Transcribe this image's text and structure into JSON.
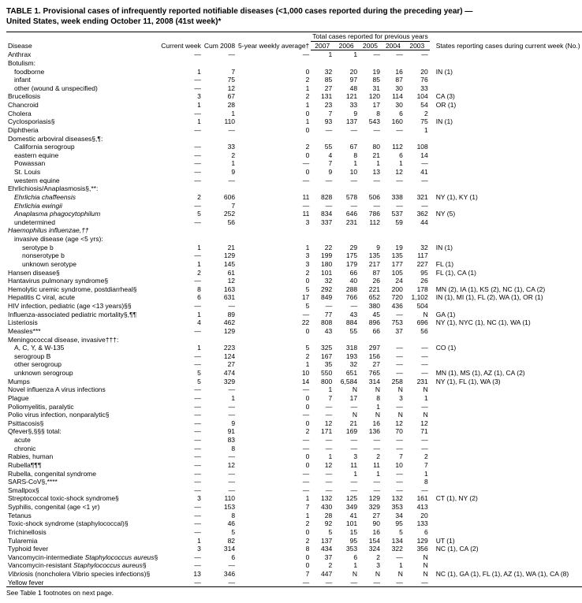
{
  "title": "TABLE 1. Provisional cases of infrequently reported notifiable diseases (<1,000 cases reported during the preceding year) — United States, week ending October 11, 2008 (41st week)*",
  "footnote": "See Table 1 footnotes on next page.",
  "columns": {
    "disease": "Disease",
    "current_week": "Current week",
    "cum_2008": "Cum 2008",
    "five_yr_avg": "5-year weekly average†",
    "span_total": "Total cases reported for previous years",
    "y2007": "2007",
    "y2006": "2006",
    "y2005": "2005",
    "y2004": "2004",
    "y2003": "2003",
    "states": "States reporting cases during current week (No.)"
  },
  "rows": [
    {
      "d": "Anthrax",
      "cw": "—",
      "cum": "—",
      "avg": "—",
      "y7": "1",
      "y6": "1",
      "y5": "—",
      "y4": "—",
      "y3": "—",
      "st": ""
    },
    {
      "d": "Botulism:",
      "cw": "",
      "cum": "",
      "avg": "",
      "y7": "",
      "y6": "",
      "y5": "",
      "y4": "",
      "y3": "",
      "st": ""
    },
    {
      "d": "foodborne",
      "ind": 1,
      "cw": "1",
      "cum": "7",
      "avg": "0",
      "y7": "32",
      "y6": "20",
      "y5": "19",
      "y4": "16",
      "y3": "20",
      "st": "IN (1)"
    },
    {
      "d": "infant",
      "ind": 1,
      "cw": "—",
      "cum": "75",
      "avg": "2",
      "y7": "85",
      "y6": "97",
      "y5": "85",
      "y4": "87",
      "y3": "76",
      "st": ""
    },
    {
      "d": "other (wound & unspecified)",
      "ind": 1,
      "cw": "—",
      "cum": "12",
      "avg": "1",
      "y7": "27",
      "y6": "48",
      "y5": "31",
      "y4": "30",
      "y3": "33",
      "st": ""
    },
    {
      "d": "Brucellosis",
      "cw": "3",
      "cum": "67",
      "avg": "2",
      "y7": "131",
      "y6": "121",
      "y5": "120",
      "y4": "114",
      "y3": "104",
      "st": "CA (3)"
    },
    {
      "d": "Chancroid",
      "cw": "1",
      "cum": "28",
      "avg": "1",
      "y7": "23",
      "y6": "33",
      "y5": "17",
      "y4": "30",
      "y3": "54",
      "st": "OR (1)"
    },
    {
      "d": "Cholera",
      "cw": "—",
      "cum": "1",
      "avg": "0",
      "y7": "7",
      "y6": "9",
      "y5": "8",
      "y4": "6",
      "y3": "2",
      "st": ""
    },
    {
      "d": "Cyclosporiasis§",
      "cw": "1",
      "cum": "110",
      "avg": "1",
      "y7": "93",
      "y6": "137",
      "y5": "543",
      "y4": "160",
      "y3": "75",
      "st": "IN (1)"
    },
    {
      "d": "Diphtheria",
      "cw": "—",
      "cum": "—",
      "avg": "0",
      "y7": "—",
      "y6": "—",
      "y5": "—",
      "y4": "—",
      "y3": "1",
      "st": ""
    },
    {
      "d": "Domestic arboviral diseases§,¶:",
      "cw": "",
      "cum": "",
      "avg": "",
      "y7": "",
      "y6": "",
      "y5": "",
      "y4": "",
      "y3": "",
      "st": ""
    },
    {
      "d": "California serogroup",
      "ind": 1,
      "cw": "—",
      "cum": "33",
      "avg": "2",
      "y7": "55",
      "y6": "67",
      "y5": "80",
      "y4": "112",
      "y3": "108",
      "st": ""
    },
    {
      "d": "eastern equine",
      "ind": 1,
      "cw": "—",
      "cum": "2",
      "avg": "0",
      "y7": "4",
      "y6": "8",
      "y5": "21",
      "y4": "6",
      "y3": "14",
      "st": ""
    },
    {
      "d": "Powassan",
      "ind": 1,
      "cw": "—",
      "cum": "1",
      "avg": "—",
      "y7": "7",
      "y6": "1",
      "y5": "1",
      "y4": "1",
      "y3": "—",
      "st": ""
    },
    {
      "d": "St. Louis",
      "ind": 1,
      "cw": "—",
      "cum": "9",
      "avg": "0",
      "y7": "9",
      "y6": "10",
      "y5": "13",
      "y4": "12",
      "y3": "41",
      "st": ""
    },
    {
      "d": "western equine",
      "ind": 1,
      "cw": "—",
      "cum": "—",
      "avg": "—",
      "y7": "—",
      "y6": "—",
      "y5": "—",
      "y4": "—",
      "y3": "—",
      "st": ""
    },
    {
      "d": "Ehrlichiosis/Anaplasmosis§,**:",
      "cw": "",
      "cum": "",
      "avg": "",
      "y7": "",
      "y6": "",
      "y5": "",
      "y4": "",
      "y3": "",
      "st": ""
    },
    {
      "d": "Ehrlichia chaffeensis",
      "ind": 1,
      "it": true,
      "cw": "2",
      "cum": "606",
      "avg": "11",
      "y7": "828",
      "y6": "578",
      "y5": "506",
      "y4": "338",
      "y3": "321",
      "st": "NY (1), KY (1)"
    },
    {
      "d": "Ehrlichia ewingii",
      "ind": 1,
      "it": true,
      "cw": "—",
      "cum": "7",
      "avg": "—",
      "y7": "—",
      "y6": "—",
      "y5": "—",
      "y4": "—",
      "y3": "—",
      "st": ""
    },
    {
      "d": "Anaplasma phagocytophilum",
      "ind": 1,
      "it": true,
      "cw": "5",
      "cum": "252",
      "avg": "11",
      "y7": "834",
      "y6": "646",
      "y5": "786",
      "y4": "537",
      "y3": "362",
      "st": "NY (5)"
    },
    {
      "d": "undetermined",
      "ind": 1,
      "cw": "—",
      "cum": "56",
      "avg": "3",
      "y7": "337",
      "y6": "231",
      "y5": "112",
      "y4": "59",
      "y3": "44",
      "st": ""
    },
    {
      "d": "Haemophilus influenzae,††",
      "it": true,
      "cw": "",
      "cum": "",
      "avg": "",
      "y7": "",
      "y6": "",
      "y5": "",
      "y4": "",
      "y3": "",
      "st": ""
    },
    {
      "d": "invasive disease (age <5 yrs):",
      "ind": 1,
      "cw": "",
      "cum": "",
      "avg": "",
      "y7": "",
      "y6": "",
      "y5": "",
      "y4": "",
      "y3": "",
      "st": ""
    },
    {
      "d": "serotype b",
      "ind": 2,
      "cw": "1",
      "cum": "21",
      "avg": "1",
      "y7": "22",
      "y6": "29",
      "y5": "9",
      "y4": "19",
      "y3": "32",
      "st": "IN (1)"
    },
    {
      "d": "nonserotype b",
      "ind": 2,
      "cw": "—",
      "cum": "129",
      "avg": "3",
      "y7": "199",
      "y6": "175",
      "y5": "135",
      "y4": "135",
      "y3": "117",
      "st": ""
    },
    {
      "d": "unknown serotype",
      "ind": 2,
      "cw": "1",
      "cum": "145",
      "avg": "3",
      "y7": "180",
      "y6": "179",
      "y5": "217",
      "y4": "177",
      "y3": "227",
      "st": "FL (1)"
    },
    {
      "d": "Hansen disease§",
      "cw": "2",
      "cum": "61",
      "avg": "2",
      "y7": "101",
      "y6": "66",
      "y5": "87",
      "y4": "105",
      "y3": "95",
      "st": "FL (1), CA (1)"
    },
    {
      "d": "Hantavirus pulmonary syndrome§",
      "cw": "—",
      "cum": "12",
      "avg": "0",
      "y7": "32",
      "y6": "40",
      "y5": "26",
      "y4": "24",
      "y3": "26",
      "st": ""
    },
    {
      "d": "Hemolytic uremic syndrome, postdiarrheal§",
      "cw": "8",
      "cum": "163",
      "avg": "5",
      "y7": "292",
      "y6": "288",
      "y5": "221",
      "y4": "200",
      "y3": "178",
      "st": "MN (2), IA (1), KS (2), NC (1), CA (2)"
    },
    {
      "d": "Hepatitis C viral, acute",
      "cw": "6",
      "cum": "631",
      "avg": "17",
      "y7": "849",
      "y6": "766",
      "y5": "652",
      "y4": "720",
      "y3": "1,102",
      "st": "IN (1), MI (1), FL (2), WA (1), OR (1)"
    },
    {
      "d": "HIV infection, pediatric (age <13 years)§§",
      "cw": "—",
      "cum": "—",
      "avg": "5",
      "y7": "—",
      "y6": "—",
      "y5": "380",
      "y4": "436",
      "y3": "504",
      "st": ""
    },
    {
      "d": "Influenza-associated pediatric mortality§,¶¶",
      "cw": "1",
      "cum": "89",
      "avg": "—",
      "y7": "77",
      "y6": "43",
      "y5": "45",
      "y4": "—",
      "y3": "N",
      "st": "GA (1)"
    },
    {
      "d": "Listeriosis",
      "cw": "4",
      "cum": "462",
      "avg": "22",
      "y7": "808",
      "y6": "884",
      "y5": "896",
      "y4": "753",
      "y3": "696",
      "st": "NY (1), NYC (1), NC (1), WA (1)"
    },
    {
      "d": "Measles***",
      "cw": "—",
      "cum": "129",
      "avg": "0",
      "y7": "43",
      "y6": "55",
      "y5": "66",
      "y4": "37",
      "y3": "56",
      "st": ""
    },
    {
      "d": "Meningococcal disease, invasive†††:",
      "cw": "",
      "cum": "",
      "avg": "",
      "y7": "",
      "y6": "",
      "y5": "",
      "y4": "",
      "y3": "",
      "st": ""
    },
    {
      "d": "A, C, Y, & W-135",
      "ind": 1,
      "cw": "1",
      "cum": "223",
      "avg": "5",
      "y7": "325",
      "y6": "318",
      "y5": "297",
      "y4": "—",
      "y3": "—",
      "st": "CO (1)"
    },
    {
      "d": "serogroup B",
      "ind": 1,
      "cw": "—",
      "cum": "124",
      "avg": "2",
      "y7": "167",
      "y6": "193",
      "y5": "156",
      "y4": "—",
      "y3": "—",
      "st": ""
    },
    {
      "d": "other serogroup",
      "ind": 1,
      "cw": "—",
      "cum": "27",
      "avg": "1",
      "y7": "35",
      "y6": "32",
      "y5": "27",
      "y4": "—",
      "y3": "—",
      "st": ""
    },
    {
      "d": "unknown serogroup",
      "ind": 1,
      "cw": "5",
      "cum": "474",
      "avg": "10",
      "y7": "550",
      "y6": "651",
      "y5": "765",
      "y4": "—",
      "y3": "—",
      "st": "MN (1), MS (1), AZ (1), CA (2)"
    },
    {
      "d": "Mumps",
      "cw": "5",
      "cum": "329",
      "avg": "14",
      "y7": "800",
      "y6": "6,584",
      "y5": "314",
      "y4": "258",
      "y3": "231",
      "st": "NY (1), FL (1), WA (3)"
    },
    {
      "d": "Novel influenza A virus infections",
      "cw": "—",
      "cum": "—",
      "avg": "—",
      "y7": "1",
      "y6": "N",
      "y5": "N",
      "y4": "N",
      "y3": "N",
      "st": ""
    },
    {
      "d": "Plague",
      "cw": "—",
      "cum": "1",
      "avg": "0",
      "y7": "7",
      "y6": "17",
      "y5": "8",
      "y4": "3",
      "y3": "1",
      "st": ""
    },
    {
      "d": "Poliomyelitis, paralytic",
      "cw": "—",
      "cum": "—",
      "avg": "0",
      "y7": "—",
      "y6": "—",
      "y5": "1",
      "y4": "—",
      "y3": "—",
      "st": ""
    },
    {
      "d": "Polio virus infection, nonparalytic§",
      "cw": "—",
      "cum": "—",
      "avg": "—",
      "y7": "—",
      "y6": "N",
      "y5": "N",
      "y4": "N",
      "y3": "N",
      "st": ""
    },
    {
      "d": "Psittacosis§",
      "cw": "—",
      "cum": "9",
      "avg": "0",
      "y7": "12",
      "y6": "21",
      "y5": "16",
      "y4": "12",
      "y3": "12",
      "st": ""
    },
    {
      "d": "Qfever§,§§§ total:",
      "cw": "—",
      "cum": "91",
      "avg": "2",
      "y7": "171",
      "y6": "169",
      "y5": "136",
      "y4": "70",
      "y3": "71",
      "st": ""
    },
    {
      "d": "acute",
      "ind": 1,
      "cw": "—",
      "cum": "83",
      "avg": "—",
      "y7": "—",
      "y6": "—",
      "y5": "—",
      "y4": "—",
      "y3": "—",
      "st": ""
    },
    {
      "d": "chronic",
      "ind": 1,
      "cw": "—",
      "cum": "8",
      "avg": "—",
      "y7": "—",
      "y6": "—",
      "y5": "—",
      "y4": "—",
      "y3": "—",
      "st": ""
    },
    {
      "d": "Rabies, human",
      "cw": "—",
      "cum": "—",
      "avg": "0",
      "y7": "1",
      "y6": "3",
      "y5": "2",
      "y4": "7",
      "y3": "2",
      "st": ""
    },
    {
      "d": "Rubella¶¶¶",
      "cw": "—",
      "cum": "12",
      "avg": "0",
      "y7": "12",
      "y6": "11",
      "y5": "11",
      "y4": "10",
      "y3": "7",
      "st": ""
    },
    {
      "d": "Rubella, congenital syndrome",
      "cw": "—",
      "cum": "—",
      "avg": "—",
      "y7": "—",
      "y6": "1",
      "y5": "1",
      "y4": "—",
      "y3": "1",
      "st": ""
    },
    {
      "d": "SARS-CoV§,****",
      "cw": "—",
      "cum": "—",
      "avg": "—",
      "y7": "—",
      "y6": "—",
      "y5": "—",
      "y4": "—",
      "y3": "8",
      "st": ""
    },
    {
      "d": "Smallpox§",
      "cw": "—",
      "cum": "—",
      "avg": "—",
      "y7": "—",
      "y6": "—",
      "y5": "—",
      "y4": "—",
      "y3": "—",
      "st": ""
    },
    {
      "d": "Streptococcal toxic-shock syndrome§",
      "cw": "3",
      "cum": "110",
      "avg": "1",
      "y7": "132",
      "y6": "125",
      "y5": "129",
      "y4": "132",
      "y3": "161",
      "st": "CT (1), NY (2)"
    },
    {
      "d": "Syphilis, congenital (age <1 yr)",
      "cw": "—",
      "cum": "153",
      "avg": "7",
      "y7": "430",
      "y6": "349",
      "y5": "329",
      "y4": "353",
      "y3": "413",
      "st": ""
    },
    {
      "d": "Tetanus",
      "cw": "—",
      "cum": "8",
      "avg": "1",
      "y7": "28",
      "y6": "41",
      "y5": "27",
      "y4": "34",
      "y3": "20",
      "st": ""
    },
    {
      "d": "Toxic-shock syndrome (staphylococcal)§",
      "cw": "—",
      "cum": "46",
      "avg": "2",
      "y7": "92",
      "y6": "101",
      "y5": "90",
      "y4": "95",
      "y3": "133",
      "st": ""
    },
    {
      "d": "Trichinellosis",
      "cw": "—",
      "cum": "5",
      "avg": "0",
      "y7": "5",
      "y6": "15",
      "y5": "16",
      "y4": "5",
      "y3": "6",
      "st": ""
    },
    {
      "d": "Tularemia",
      "cw": "1",
      "cum": "82",
      "avg": "2",
      "y7": "137",
      "y6": "95",
      "y5": "154",
      "y4": "134",
      "y3": "129",
      "st": "UT (1)"
    },
    {
      "d": "Typhoid fever",
      "cw": "3",
      "cum": "314",
      "avg": "8",
      "y7": "434",
      "y6": "353",
      "y5": "324",
      "y4": "322",
      "y3": "356",
      "st": "NC (1), CA (2)"
    },
    {
      "d": "Vancomycin-intermediate Staphylococcus aureus§",
      "it_partial": "Staphylococcus aureus",
      "cw": "—",
      "cum": "6",
      "avg": "0",
      "y7": "37",
      "y6": "6",
      "y5": "2",
      "y4": "—",
      "y3": "N",
      "st": ""
    },
    {
      "d": "Vancomycin-resistant Staphylococcus aureus§",
      "it_partial": "Staphylococcus aureus",
      "cw": "—",
      "cum": "—",
      "avg": "0",
      "y7": "2",
      "y6": "1",
      "y5": "3",
      "y4": "1",
      "y3": "N",
      "st": ""
    },
    {
      "d": "Vibriosis (noncholera Vibrio species infections)§",
      "it_partial": "Vibrio",
      "cw": "13",
      "cum": "346",
      "avg": "7",
      "y7": "447",
      "y6": "N",
      "y5": "N",
      "y4": "N",
      "y3": "N",
      "st": "NC (1), GA (1), FL (1), AZ (1), WA (1), CA (8)"
    },
    {
      "d": "Yellow fever",
      "cw": "—",
      "cum": "—",
      "avg": "—",
      "y7": "—",
      "y6": "—",
      "y5": "—",
      "y4": "—",
      "y3": "—",
      "st": ""
    }
  ]
}
